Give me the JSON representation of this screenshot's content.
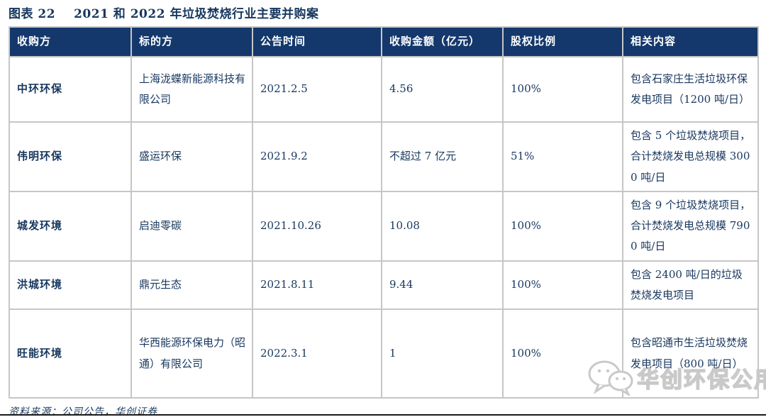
{
  "title": {
    "label": "图表 22",
    "text": "2021 和 2022 年垃圾焚烧行业主要并购案"
  },
  "colors": {
    "header_bg": "#14386c",
    "text_navy": "#17375e",
    "border_gray": "#c6c6c6",
    "watermark_gray": "#c9c9c9"
  },
  "table": {
    "headers": [
      {
        "key": "acquirer",
        "label": "收购方"
      },
      {
        "key": "target",
        "label": "标的方"
      },
      {
        "key": "announce_date",
        "label": "公告时间"
      },
      {
        "key": "amount",
        "label": "收购金额（亿元）"
      },
      {
        "key": "equity_ratio",
        "label": "股权比例"
      },
      {
        "key": "details",
        "label": "相关内容"
      }
    ],
    "rows": [
      [
        "中环环保",
        "上海泷蝶新能源科技有限公司",
        "2021.2.5",
        "4.56",
        "100%",
        "包含石家庄生活垃圾环保发电项目（1200 吨/日）"
      ],
      [
        "伟明环保",
        "盛运环保",
        "2021.9.2",
        "不超过 7 亿元",
        "51%",
        "包含 5 个垃圾焚烧项目，合计焚烧发电总规模 3000 吨/日"
      ],
      [
        "城发环境",
        "启迪零碳",
        "2021.10.26",
        "10.08",
        "100%",
        "包含 9 个垃圾焚烧项目，合计焚烧发电总规模 7900 吨/日"
      ],
      [
        "洪城环境",
        "鼎元生态",
        "2021.8.11",
        "9.44",
        "100%",
        "包含 2400 吨/日的垃圾焚烧发电项目"
      ],
      [
        "旺能环境",
        "华西能源环保电力（昭通）有限公司",
        "2022.3.1",
        "1",
        "100%",
        "包含昭通市生活垃圾焚烧发电项目（800 吨/日）"
      ]
    ]
  },
  "source": "资料来源：公司公告，华创证券",
  "watermark": {
    "icon": "wechat-icon",
    "text": "华创环保公用"
  }
}
